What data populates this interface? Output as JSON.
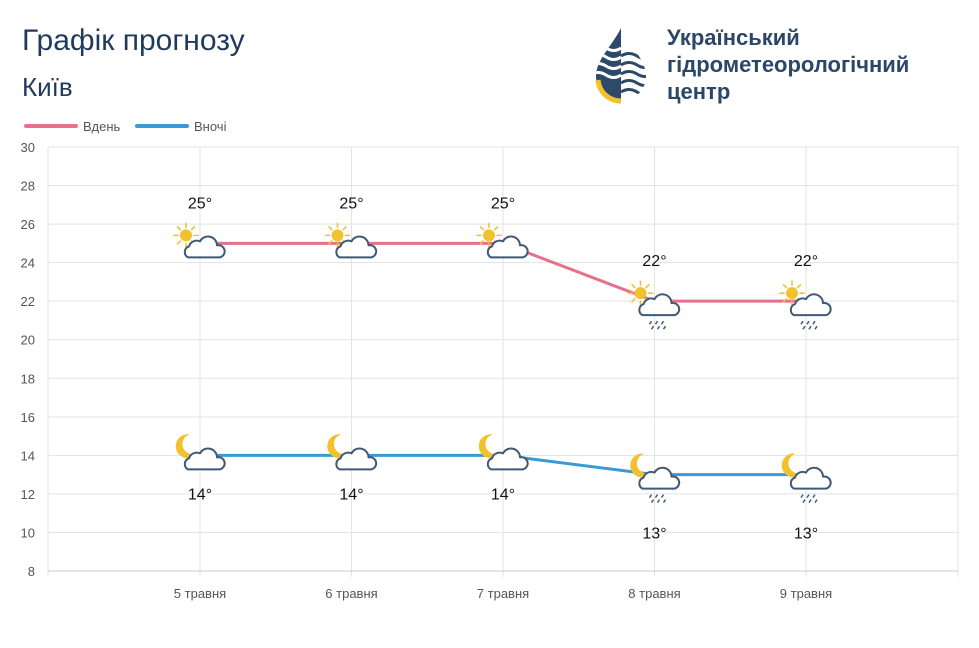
{
  "header": {
    "title": "Графік прогнозу",
    "city": "Київ",
    "org_name": "Український\nгідрометеорологічний\nцентр",
    "logo_icon": "hydrometcenter-drop-logo-icon"
  },
  "colors": {
    "day": "#e8708b",
    "night": "#3b9ad4",
    "grid": "#e3e3e3",
    "title": "#1f3a5b",
    "sun": "#f2c12e",
    "cloud_stroke": "#3f5a76"
  },
  "chart_data": {
    "type": "line",
    "categories": [
      "5 травня",
      "6 травня",
      "7 травня",
      "8 травня",
      "9 травня"
    ],
    "series": [
      {
        "name": "Вдень",
        "values": [
          25,
          25,
          25,
          22,
          22
        ],
        "labels": [
          "25°",
          "25°",
          "25°",
          "22°",
          "22°"
        ],
        "icons": [
          "sun-cloud-icon",
          "sun-cloud-icon",
          "sun-cloud-icon",
          "sun-cloud-rain-icon",
          "sun-cloud-rain-icon"
        ]
      },
      {
        "name": "Вночі",
        "values": [
          14,
          14,
          14,
          13,
          13
        ],
        "labels": [
          "14°",
          "14°",
          "14°",
          "13°",
          "13°"
        ],
        "icons": [
          "moon-cloud-icon",
          "moon-cloud-icon",
          "moon-cloud-icon",
          "moon-cloud-rain-icon",
          "moon-cloud-rain-icon"
        ]
      }
    ],
    "ylim": [
      8,
      30
    ],
    "yticks": [
      8,
      10,
      12,
      14,
      16,
      18,
      20,
      22,
      24,
      26,
      28,
      30
    ],
    "grid": true,
    "legend": "top-left"
  }
}
